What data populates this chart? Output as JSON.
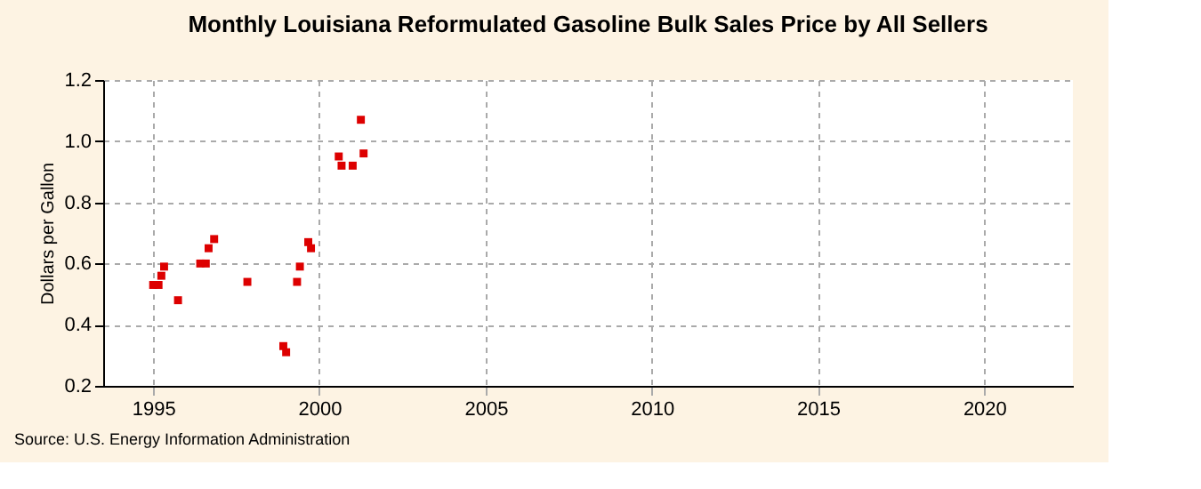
{
  "chart_data": {
    "type": "scatter",
    "title": "Monthly Louisiana Reformulated Gasoline Bulk Sales Price by All Sellers",
    "ylabel": "Dollars per Gallon",
    "x": [
      "1995-01",
      "1995-03",
      "1995-04",
      "1995-05",
      "1995-10",
      "1996-06",
      "1996-08",
      "1996-09",
      "1996-11",
      "1997-11",
      "1998-12",
      "1999-01",
      "1999-05",
      "1999-06",
      "1999-09",
      "1999-10",
      "2000-08",
      "2000-09",
      "2001-01",
      "2001-04",
      "2001-05"
    ],
    "series": [
      {
        "color": "#dd0000",
        "values": [
          0.53,
          0.53,
          0.56,
          0.59,
          0.48,
          0.6,
          0.6,
          0.65,
          0.68,
          0.54,
          0.33,
          0.31,
          0.54,
          0.59,
          0.67,
          0.65,
          0.95,
          0.92,
          0.92,
          1.07,
          0.96
        ]
      }
    ],
    "xlim": [
      "1993-07",
      "2022-09"
    ],
    "xticks": [
      "1995",
      "2000",
      "2005",
      "2010",
      "2015",
      "2020"
    ],
    "ylim": [
      0.2,
      1.2
    ],
    "yticks": [
      {
        "value": 0.2,
        "label": "0.2"
      },
      {
        "value": 0.4,
        "label": "0.4"
      },
      {
        "value": 0.6,
        "label": "0.6"
      },
      {
        "value": 0.8,
        "label": "0.8"
      },
      {
        "value": 1.0,
        "label": "1.0"
      },
      {
        "value": 1.2,
        "label": "1.2"
      }
    ],
    "grid": true,
    "marker": "square",
    "legend": false,
    "annotations": [
      "Source: U.S. Energy Information Administration"
    ]
  }
}
